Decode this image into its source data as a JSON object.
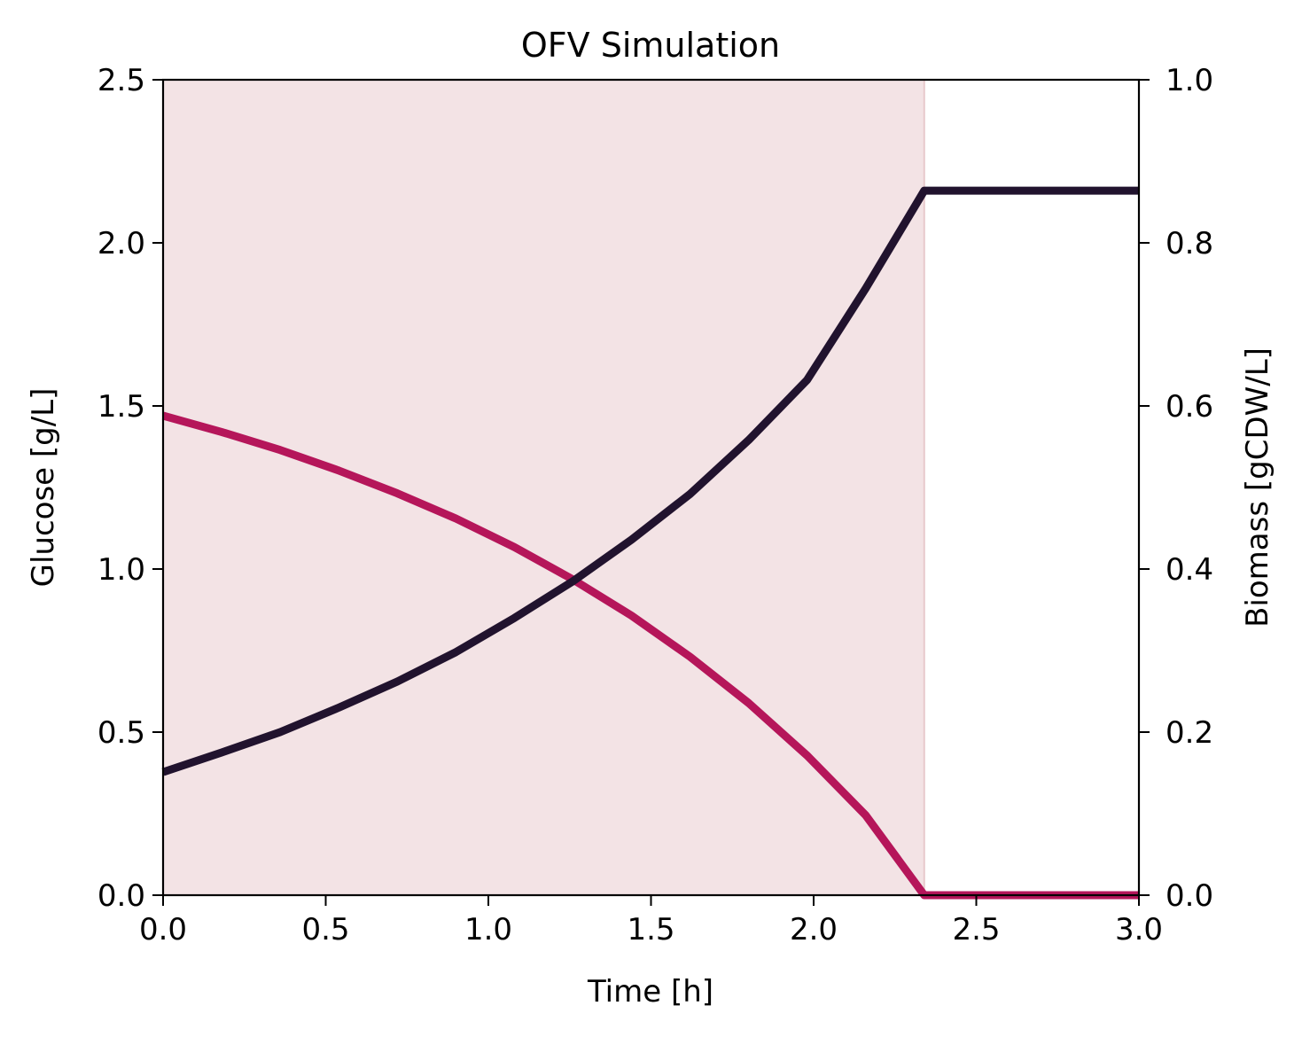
{
  "chart_data": {
    "type": "line",
    "title": "OFV Simulation",
    "xlabel": "Time [h]",
    "ylabel_left": "Glucose [g/L]",
    "ylabel_right": "Biomass [gCDW/L]",
    "xlim": [
      0,
      3.0
    ],
    "ylim_left": [
      0,
      2.5
    ],
    "ylim_right": [
      0,
      1.0
    ],
    "x_ticks": [
      "0.0",
      "0.5",
      "1.0",
      "1.5",
      "2.0",
      "2.5",
      "3.0"
    ],
    "y_left_ticks": [
      "0.0",
      "0.5",
      "1.0",
      "1.5",
      "2.0",
      "2.5"
    ],
    "y_right_ticks": [
      "0.0",
      "0.2",
      "0.4",
      "0.6",
      "0.8",
      "1.0"
    ],
    "grid": false,
    "legend": "none",
    "shaded_region": {
      "x_start": 0,
      "x_end": 2.34,
      "color": "#f3e3e5"
    },
    "series": [
      {
        "axis": "left",
        "color": "#b5165a",
        "x": [
          0,
          0.18,
          0.36,
          0.54,
          0.72,
          0.9,
          1.08,
          1.26,
          1.44,
          1.62,
          1.8,
          1.98,
          2.16,
          2.34,
          3.0
        ],
        "y": [
          1.47,
          1.42,
          1.365,
          1.302,
          1.232,
          1.155,
          1.067,
          0.968,
          0.857,
          0.731,
          0.589,
          0.428,
          0.245,
          0.0,
          0.0
        ]
      },
      {
        "axis": "right",
        "color": "#21132e",
        "x": [
          0,
          0.18,
          0.36,
          0.54,
          0.72,
          0.9,
          1.08,
          1.26,
          1.44,
          1.62,
          1.8,
          1.98,
          2.16,
          2.34,
          3.0
        ],
        "y": [
          0.151,
          0.175,
          0.2,
          0.23,
          0.262,
          0.298,
          0.34,
          0.385,
          0.436,
          0.492,
          0.558,
          0.632,
          0.744,
          0.864,
          0.864
        ]
      }
    ]
  }
}
